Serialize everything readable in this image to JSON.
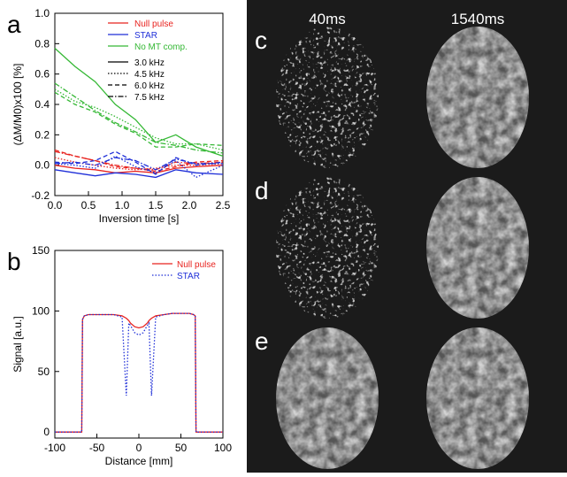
{
  "chart_data": [
    {
      "type": "line",
      "panel": "a",
      "x_label": "Inversion time [s]",
      "y_label": "(ΔM/M0)x100 [%]",
      "xlim": [
        0,
        2.5
      ],
      "ylim": [
        -0.2,
        1.0
      ],
      "xticks": [
        {
          "value": 0,
          "label": "0.0"
        },
        0.5,
        {
          "value": 1,
          "label": "1.0"
        },
        1.5,
        {
          "value": 2,
          "label": "2.0"
        },
        2.5
      ],
      "yticks": [
        -0.2,
        {
          "value": 0,
          "label": "0.0"
        },
        0.2,
        0.4,
        0.6,
        0.8,
        {
          "value": 1,
          "label": "1.0"
        }
      ],
      "color_legend": [
        {
          "label": "Null pulse",
          "color": "#e8231f"
        },
        {
          "label": "STAR",
          "color": "#1f2fd8"
        },
        {
          "label": "No MT comp.",
          "color": "#35b835"
        }
      ],
      "style_legend": [
        {
          "label": "3.0 kHz",
          "dash": "solid"
        },
        {
          "label": "4.5 kHz",
          "dash": "dotted"
        },
        {
          "label": "6.0 kHz",
          "dash": "dashed"
        },
        {
          "label": "7.5 kHz",
          "dash": "dashdot"
        }
      ],
      "x": [
        0,
        0.3,
        0.6,
        0.9,
        1.2,
        1.5,
        1.8,
        2.1,
        2.5
      ],
      "series": [
        {
          "color": "#35b835",
          "dash": "solid",
          "values": [
            0.77,
            0.65,
            0.55,
            0.4,
            0.3,
            0.15,
            0.2,
            0.12,
            0.06
          ]
        },
        {
          "color": "#35b835",
          "dash": "dotted",
          "values": [
            0.5,
            0.42,
            0.38,
            0.32,
            0.25,
            0.18,
            0.14,
            0.14,
            0.1
          ]
        },
        {
          "color": "#35b835",
          "dash": "dashed",
          "values": [
            0.48,
            0.4,
            0.35,
            0.27,
            0.21,
            0.12,
            0.12,
            0.14,
            0.13
          ]
        },
        {
          "color": "#35b835",
          "dash": "dashdot",
          "values": [
            0.54,
            0.45,
            0.36,
            0.28,
            0.22,
            0.15,
            0.13,
            0.1,
            0.08
          ]
        },
        {
          "color": "#e8231f",
          "dash": "solid",
          "values": [
            0.0,
            -0.02,
            -0.03,
            -0.05,
            -0.04,
            -0.05,
            -0.02,
            -0.01,
            0.0
          ]
        },
        {
          "color": "#e8231f",
          "dash": "dotted",
          "values": [
            0.05,
            0.02,
            0.0,
            -0.02,
            -0.03,
            -0.02,
            0.0,
            0.0,
            0.01
          ]
        },
        {
          "color": "#e8231f",
          "dash": "dashed",
          "values": [
            0.1,
            0.06,
            0.03,
            -0.01,
            -0.02,
            -0.04,
            -0.01,
            0.02,
            0.03
          ]
        },
        {
          "color": "#e8231f",
          "dash": "dashdot",
          "values": [
            0.09,
            0.06,
            0.03,
            0.0,
            -0.02,
            -0.03,
            0.02,
            0.01,
            0.02
          ]
        },
        {
          "color": "#1f2fd8",
          "dash": "solid",
          "values": [
            -0.03,
            -0.05,
            -0.07,
            -0.05,
            -0.06,
            -0.08,
            -0.03,
            -0.05,
            -0.06
          ]
        },
        {
          "color": "#1f2fd8",
          "dash": "dotted",
          "values": [
            0.01,
            0.0,
            -0.02,
            0.06,
            -0.01,
            -0.05,
            0.03,
            -0.08,
            0.0
          ]
        },
        {
          "color": "#1f2fd8",
          "dash": "dashed",
          "values": [
            0.02,
            0.01,
            0.03,
            0.09,
            0.02,
            -0.06,
            0.05,
            0.0,
            0.02
          ]
        },
        {
          "color": "#1f2fd8",
          "dash": "dashdot",
          "values": [
            0.01,
            0.02,
            0.0,
            0.05,
            0.03,
            -0.03,
            0.04,
            0.01,
            0.01
          ]
        }
      ]
    },
    {
      "type": "line",
      "panel": "b",
      "x_label": "Distance [mm]",
      "y_label": "Signal [a.u.]",
      "xlim": [
        -100,
        100
      ],
      "ylim": [
        -5,
        150
      ],
      "xticks": [
        -100,
        -50,
        0,
        50,
        100
      ],
      "yticks": [
        0,
        50,
        100,
        150
      ],
      "x": [
        -100,
        -68,
        -67,
        -65,
        -60,
        -50,
        -40,
        -30,
        -20,
        -15,
        -12,
        -10,
        -5,
        0,
        5,
        10,
        12,
        15,
        20,
        30,
        40,
        50,
        60,
        65,
        67,
        68,
        100
      ],
      "series": [
        {
          "name": "Null pulse",
          "color": "#e8231f",
          "dash": "solid",
          "values": [
            0,
            0,
            93,
            96,
            97,
            97,
            97,
            97,
            96,
            94,
            92,
            90,
            87,
            86,
            87,
            90,
            92,
            94,
            96,
            97,
            98,
            98,
            98,
            97,
            96,
            0,
            0
          ]
        },
        {
          "name": "STAR",
          "color": "#1f2fd8",
          "dash": "dotted",
          "values": [
            0,
            0,
            93,
            96,
            97,
            97,
            97,
            97,
            95,
            30,
            90,
            88,
            82,
            80,
            82,
            88,
            90,
            30,
            95,
            97,
            98,
            98,
            98,
            97,
            96,
            0,
            0
          ]
        }
      ]
    }
  ],
  "images": {
    "columns": [
      "40ms",
      "1540ms"
    ],
    "rows": [
      "c",
      "d",
      "e"
    ]
  }
}
